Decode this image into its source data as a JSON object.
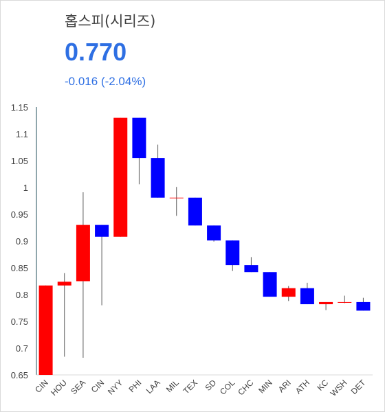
{
  "header": {
    "title": "홉스피(시리즈)",
    "value": "0.770",
    "change": "-0.016 (-2.04%)"
  },
  "colors": {
    "up": "#ff0000",
    "down": "#0000ff",
    "wick": "#595959",
    "accent": "#2e6fe3"
  },
  "chart_data": {
    "type": "candlestick",
    "title": "",
    "xlabel": "",
    "ylabel": "",
    "ylim": [
      0.65,
      1.15
    ],
    "yticks": [
      "0.65",
      "0.7",
      "0.75",
      "0.8",
      "0.85",
      "0.9",
      "0.95",
      "1",
      "1.05",
      "1.1",
      "1.15"
    ],
    "grid": false,
    "legend": "none",
    "categories": [
      "CIN",
      "HOU",
      "SEA",
      "CIN",
      "NYY",
      "PHI",
      "LAA",
      "MIL",
      "TEX",
      "SD",
      "COL",
      "CHC",
      "MIN",
      "ARI",
      "ATH",
      "KC",
      "WSH",
      "DET"
    ],
    "series": [
      {
        "open": [
          0.65,
          0.817,
          0.825,
          0.93,
          0.908,
          1.13,
          1.055,
          0.981,
          0.981,
          0.929,
          0.901,
          0.855,
          0.842,
          0.796,
          0.812,
          0.782,
          0.786,
          0.786
        ],
        "high": [
          0.817,
          0.84,
          0.991,
          0.93,
          1.13,
          1.13,
          1.08,
          1.001,
          0.981,
          0.929,
          0.901,
          0.87,
          0.842,
          0.816,
          0.822,
          0.786,
          0.798,
          0.794
        ],
        "low": [
          0.65,
          0.684,
          0.682,
          0.78,
          0.908,
          1.006,
          0.981,
          0.947,
          0.929,
          0.899,
          0.844,
          0.842,
          0.796,
          0.788,
          0.782,
          0.771,
          0.784,
          0.77
        ],
        "close": [
          0.817,
          0.824,
          0.93,
          0.908,
          1.13,
          1.055,
          0.981,
          0.981,
          0.929,
          0.901,
          0.855,
          0.842,
          0.796,
          0.812,
          0.782,
          0.786,
          0.786,
          0.77
        ]
      }
    ]
  }
}
